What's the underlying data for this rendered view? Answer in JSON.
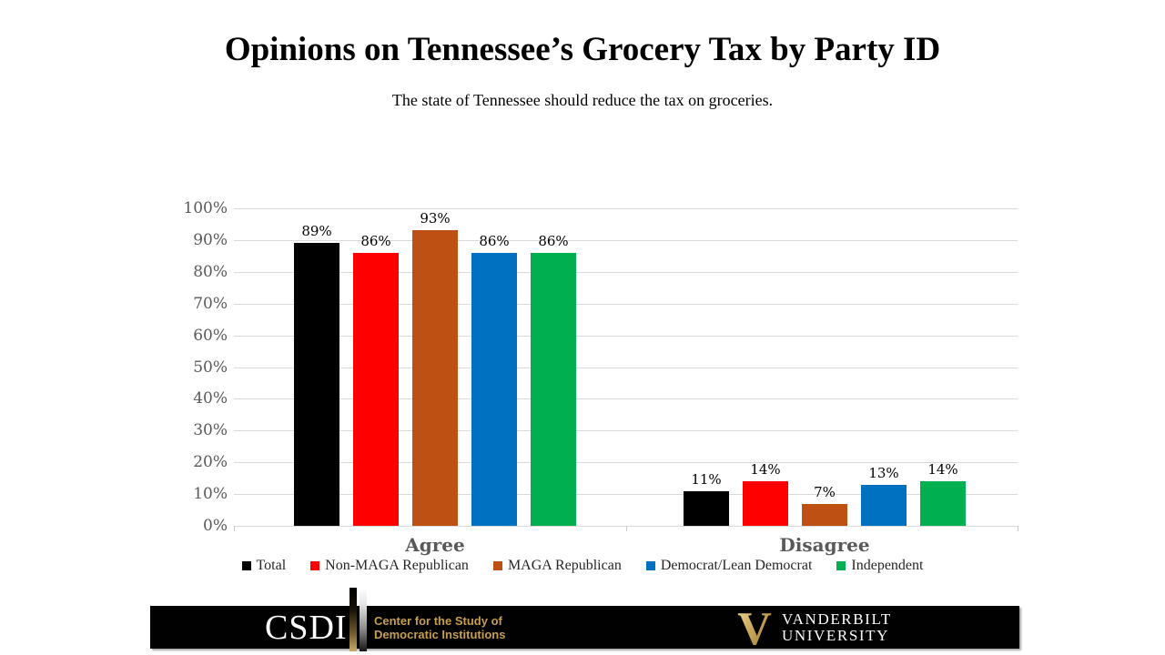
{
  "slide": {
    "title": "Opinions on Tennessee’s Grocery Tax by Party ID",
    "subtitle": "The state of Tennessee should reduce the tax on groceries."
  },
  "chart_data": {
    "type": "bar",
    "categories": [
      "Agree",
      "Disagree"
    ],
    "series": [
      {
        "name": "Total",
        "color": "#000000",
        "values": [
          89,
          11
        ]
      },
      {
        "name": "Non-MAGA Republican",
        "color": "#FF0000",
        "values": [
          86,
          14
        ]
      },
      {
        "name": "MAGA Republican",
        "color": "#BF5014",
        "values": [
          93,
          7
        ]
      },
      {
        "name": "Democrat/Lean Democrat",
        "color": "#0070C0",
        "values": [
          86,
          13
        ]
      },
      {
        "name": "Independent",
        "color": "#00B050",
        "values": [
          86,
          14
        ]
      }
    ],
    "value_label_suffix": "%",
    "y_axis": {
      "min": 0,
      "max": 100,
      "step": 10,
      "tick_suffix": "%"
    },
    "grid": true,
    "legend_position": "bottom"
  },
  "footer": {
    "csdi_abbr": "CSDI",
    "csdi_caption_line1": "Center for the Study of",
    "csdi_caption_line2": "Democratic Institutions",
    "vu_initial": "V",
    "vu_line1": "VANDERBILT",
    "vu_line2": "UNIVERSITY"
  },
  "colors": {
    "axis_text": "#595959",
    "gridline": "#D9D9D9",
    "category_label": "#595959",
    "footer_background": "#000000",
    "csdi_gold": "#C79F4F",
    "vanderbilt_gold": "#C5A254"
  }
}
